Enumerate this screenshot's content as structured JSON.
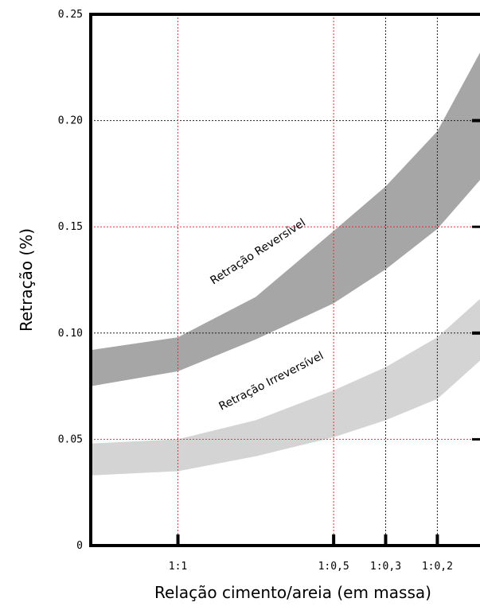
{
  "chart_data": {
    "type": "area",
    "xlabel": "Relação cimento/areia (em massa)",
    "ylabel": "Retração (%)",
    "ylim": [
      0,
      0.25
    ],
    "y_ticks": [
      "0",
      "0.05",
      "0.10",
      "0.15",
      "0.20",
      "0.25"
    ],
    "y_tick_values": [
      0,
      0.05,
      0.1,
      0.15,
      0.2,
      0.25
    ],
    "xlim": [
      0.72,
      1.97
    ],
    "categories": [
      "1:1",
      "1:0,5",
      "1:0,3",
      "1:0,2"
    ],
    "category_positions": [
      1.0,
      1.5,
      1.667,
      1.833
    ],
    "grid": true,
    "series": [
      {
        "name": "Retração Reversível",
        "color": "#a6a6a6",
        "x": [
          0.72,
          1.0,
          1.25,
          1.5,
          1.667,
          1.833,
          1.97
        ],
        "upper": [
          0.092,
          0.098,
          0.117,
          0.148,
          0.169,
          0.195,
          0.232
        ],
        "lower": [
          0.075,
          0.082,
          0.097,
          0.114,
          0.13,
          0.149,
          0.172
        ]
      },
      {
        "name": "Retração Irreversível",
        "color": "#d4d4d4",
        "x": [
          0.72,
          1.0,
          1.25,
          1.5,
          1.667,
          1.833,
          1.97
        ],
        "upper": [
          0.048,
          0.05,
          0.059,
          0.073,
          0.084,
          0.098,
          0.116
        ],
        "lower": [
          0.033,
          0.035,
          0.042,
          0.051,
          0.059,
          0.069,
          0.087
        ]
      }
    ]
  }
}
